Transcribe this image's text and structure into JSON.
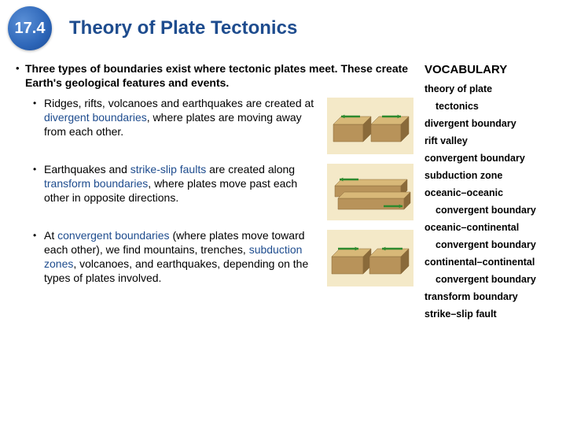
{
  "header": {
    "section_number": "17.4",
    "title": "Theory of Plate Tectonics"
  },
  "main_point": {
    "text_parts": [
      "Three types of boundaries exist where tectonic plates meet. These create Earth's geological features and events."
    ]
  },
  "subpoints": [
    {
      "pre": "Ridges, rifts, volcanoes and earthquakes are created at ",
      "key": "divergent boundaries",
      "post": ", where plates are moving away from each other.",
      "diagram": "divergent"
    },
    {
      "pre": "Earthquakes and ",
      "key": "strike-slip faults",
      "mid": " are created along ",
      "key2": "transform boundaries",
      "post": ", where plates move past each other in opposite directions.",
      "diagram": "transform"
    },
    {
      "pre": "At ",
      "key": "convergent boundaries",
      "mid": " (where plates move toward each other), we find mountains, trenches, ",
      "key2": "subduction zones",
      "post": ", volcanoes, and earthquakes, depending on the types of plates involved.",
      "diagram": "convergent"
    }
  ],
  "vocab": {
    "title": "VOCABULARY",
    "items": [
      {
        "text": "theory of plate",
        "indent": false
      },
      {
        "text": "tectonics",
        "indent": true
      },
      {
        "text": "divergent boundary",
        "indent": false
      },
      {
        "text": "rift valley",
        "indent": false
      },
      {
        "text": "convergent boundary",
        "indent": false
      },
      {
        "text": "subduction zone",
        "indent": false
      },
      {
        "text": "oceanic–oceanic",
        "indent": false
      },
      {
        "text": "convergent boundary",
        "indent": true
      },
      {
        "text": "oceanic–continental",
        "indent": false
      },
      {
        "text": "convergent boundary",
        "indent": true
      },
      {
        "text": "continental–continental",
        "indent": false
      },
      {
        "text": "convergent boundary",
        "indent": true
      },
      {
        "text": "transform boundary",
        "indent": false
      },
      {
        "text": "strike–slip fault",
        "indent": false
      }
    ]
  },
  "diagrams": {
    "plate_top": "#d8b878",
    "plate_side": "#b8935a",
    "plate_edge": "#8a6a3a",
    "arrow": "#2e8a2e",
    "bg": "#f4e9c8"
  }
}
